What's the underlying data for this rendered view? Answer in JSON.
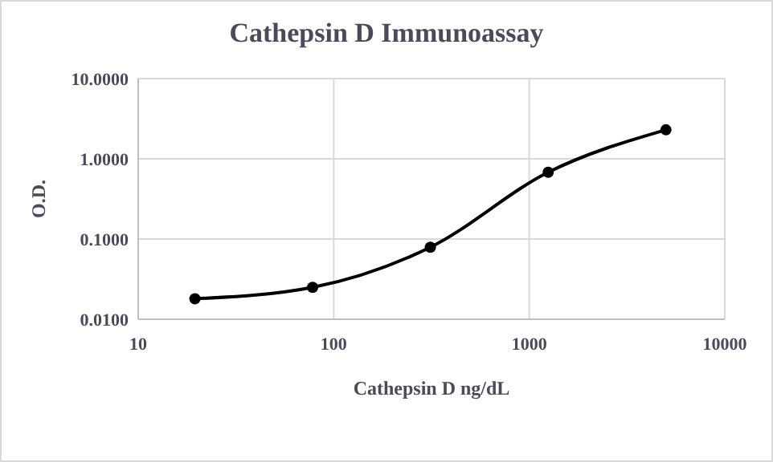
{
  "chart_data": {
    "type": "line",
    "title": "Cathepsin D Immunoassay",
    "xlabel": "Cathepsin D ng/dL",
    "ylabel": "O.D.",
    "x": [
      19.5,
      78,
      312,
      1250,
      5000
    ],
    "series": [
      {
        "color": "#000000",
        "values": [
          0.018,
          0.025,
          0.079,
          0.68,
          2.3
        ]
      }
    ],
    "log": "xy",
    "xlim": [
      10,
      10000
    ],
    "xticks": [
      10,
      100,
      1000,
      10000
    ],
    "ylim": [
      0.01,
      10
    ],
    "yticks": [
      {
        "value": 0.01,
        "label": "0.0100"
      },
      {
        "value": 0.1,
        "label": "0.1000"
      },
      {
        "value": 1,
        "label": "1.0000"
      },
      {
        "value": 10,
        "label": "10.0000"
      }
    ],
    "grid": true,
    "marker": "circle",
    "line_style": "solid"
  }
}
